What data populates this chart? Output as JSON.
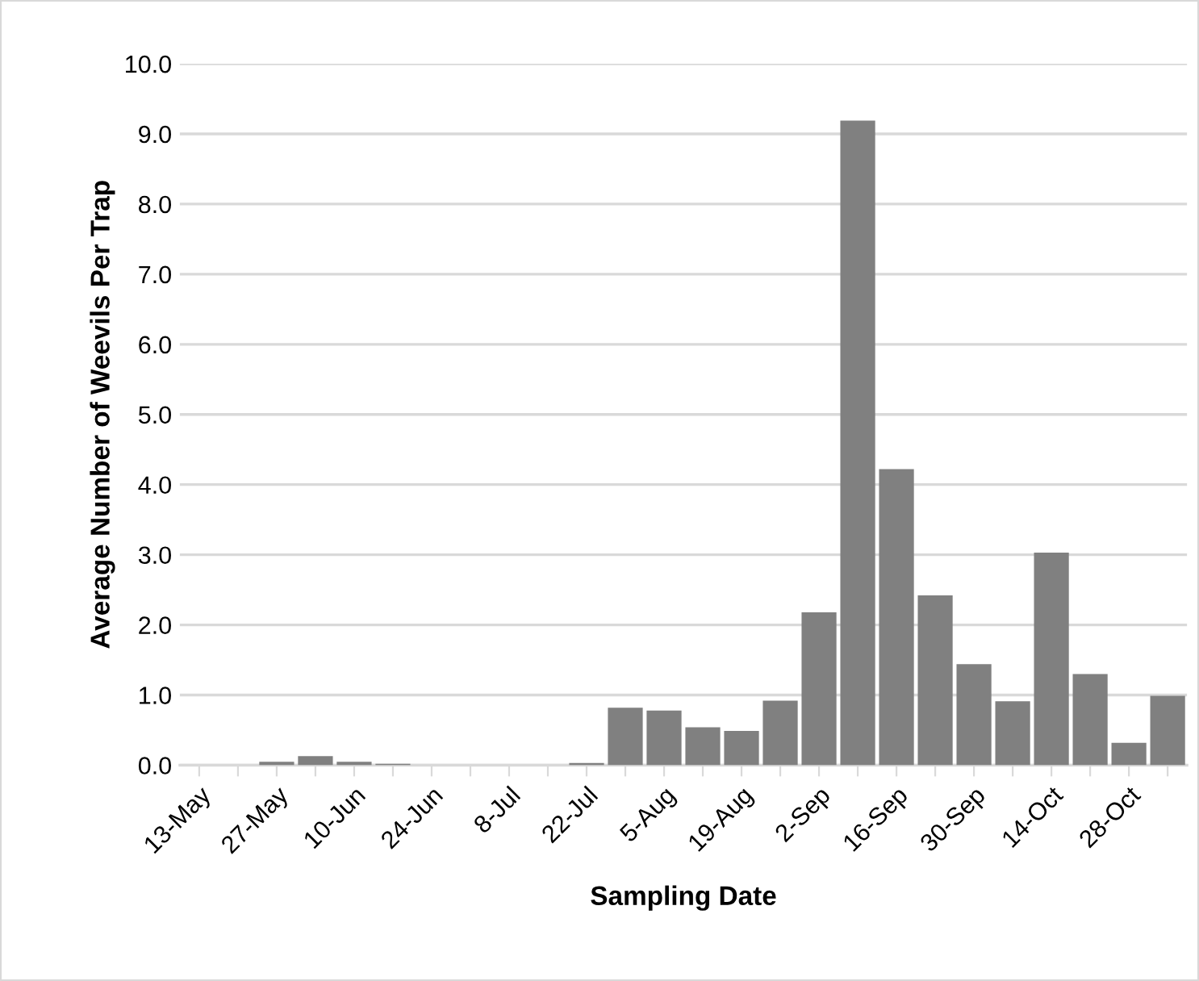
{
  "chart_data": {
    "type": "bar",
    "xlabel": "Sampling Date",
    "ylabel": "Average Number of Weevils Per Trap",
    "categories": [
      "13-May",
      null,
      "27-May",
      null,
      "10-Jun",
      null,
      "24-Jun",
      null,
      "8-Jul",
      null,
      "22-Jul",
      null,
      "5-Aug",
      null,
      "19-Aug",
      null,
      "2-Sep",
      null,
      "16-Sep",
      null,
      "30-Sep",
      null,
      "14-Oct",
      null,
      "28-Oct",
      null
    ],
    "values": [
      0,
      0,
      0.05,
      0.13,
      0.05,
      0.02,
      0,
      0,
      0,
      0,
      0.03,
      0.82,
      0.78,
      0.54,
      0.49,
      0.92,
      2.18,
      9.19,
      4.22,
      2.42,
      1.44,
      0.91,
      3.03,
      1.3,
      0.32,
      0.99
    ],
    "color": "#808080",
    "ylim": [
      0,
      10
    ],
    "yticks": [
      {
        "value": 0,
        "label": "0.0"
      },
      {
        "value": 1,
        "label": "1.0"
      },
      {
        "value": 2,
        "label": "2.0"
      },
      {
        "value": 3,
        "label": "3.0"
      },
      {
        "value": 4,
        "label": "4.0"
      },
      {
        "value": 5,
        "label": "5.0"
      },
      {
        "value": 6,
        "label": "6.0"
      },
      {
        "value": 7,
        "label": "7.0"
      },
      {
        "value": 8,
        "label": "8.0"
      },
      {
        "value": 9,
        "label": "9.0"
      },
      {
        "value": 10,
        "label": "10.0"
      }
    ],
    "grid": "y",
    "legend": false
  }
}
